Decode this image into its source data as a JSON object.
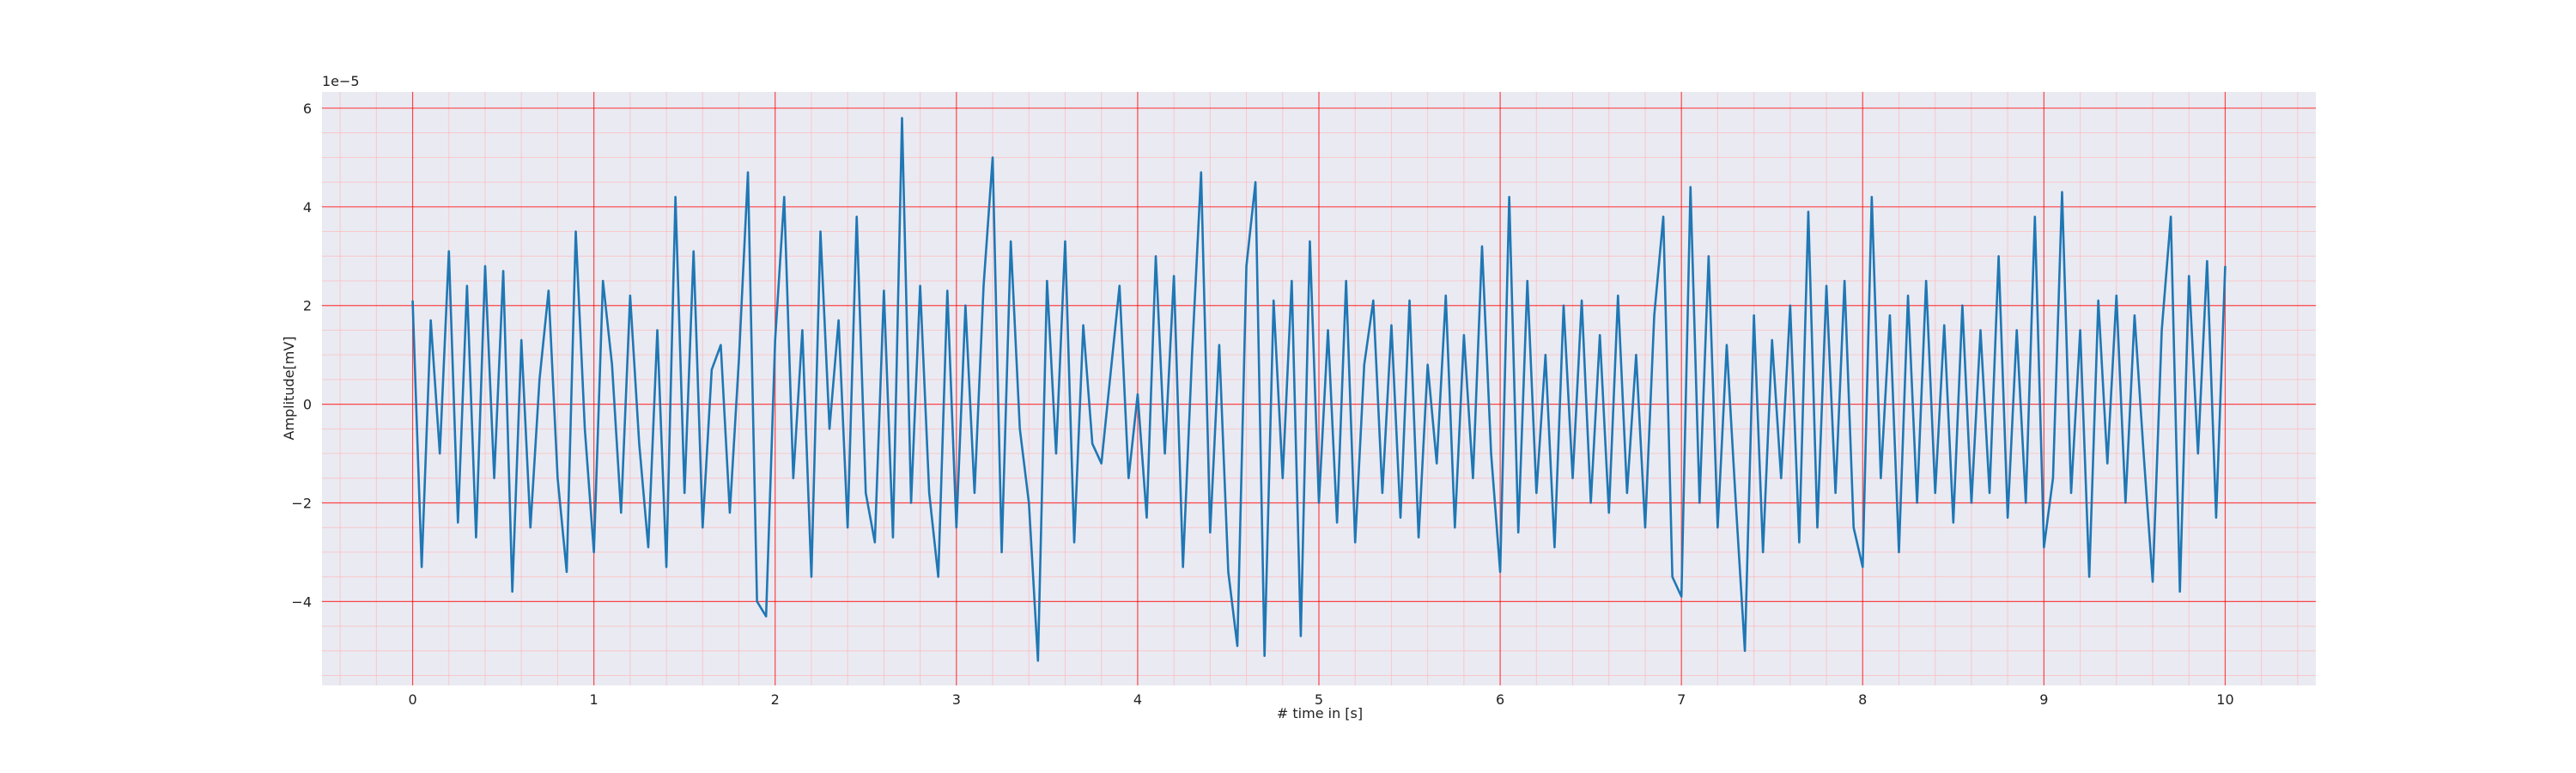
{
  "chart_data": {
    "type": "line",
    "xlabel": "# time in [s]",
    "ylabel": "Amplitude[mV]",
    "y_offset_label": "1e−5",
    "color": "#1f77b4",
    "background": "#eaeaf2",
    "grid_color": "#ff0000",
    "minor_grid_color": "#ffb3b3",
    "grid": true,
    "minor_grid": true,
    "xlim": [
      -0.5,
      10.5
    ],
    "ylim": [
      -5.7,
      6.33
    ],
    "xticks": [
      0,
      1,
      2,
      3,
      4,
      5,
      6,
      7,
      8,
      9,
      10
    ],
    "yticks": [
      {
        "value": -4,
        "label": "−4"
      },
      {
        "value": -2,
        "label": "−2"
      },
      0,
      2,
      4,
      6
    ],
    "xminorticks": [
      -0.4,
      -0.2,
      0.2,
      0.4,
      0.6,
      0.8,
      1.2,
      1.4,
      1.6,
      1.8,
      2.2,
      2.4,
      2.6,
      2.8,
      3.2,
      3.4,
      3.6,
      3.8,
      4.2,
      4.4,
      4.6,
      4.8,
      5.2,
      5.4,
      5.6,
      5.8,
      6.2,
      6.4,
      6.6,
      6.8,
      7.2,
      7.4,
      7.6,
      7.8,
      8.2,
      8.4,
      8.6,
      8.8,
      9.2,
      9.4,
      9.6,
      9.8,
      10.2,
      10.4
    ],
    "yminorticks": [
      -5.5,
      -5,
      -4.5,
      -3.5,
      -3,
      -2.5,
      -1.5,
      -1,
      -0.5,
      0.5,
      1,
      1.5,
      2.5,
      3,
      3.5,
      4.5,
      5,
      5.5
    ],
    "x": [
      0,
      0.05,
      0.1,
      0.15,
      0.2,
      0.25,
      0.3,
      0.35,
      0.4,
      0.45,
      0.5,
      0.55,
      0.6,
      0.65,
      0.7,
      0.75,
      0.8,
      0.85,
      0.9,
      0.95,
      1,
      1.05,
      1.1,
      1.15,
      1.2,
      1.25,
      1.3,
      1.35,
      1.4,
      1.45,
      1.5,
      1.55,
      1.6,
      1.65,
      1.7,
      1.75,
      1.8,
      1.85,
      1.9,
      1.95,
      2,
      2.05,
      2.1,
      2.15,
      2.2,
      2.25,
      2.3,
      2.35,
      2.4,
      2.45,
      2.5,
      2.55,
      2.6,
      2.65,
      2.7,
      2.75,
      2.8,
      2.85,
      2.9,
      2.95,
      3,
      3.05,
      3.1,
      3.15,
      3.2,
      3.25,
      3.3,
      3.35,
      3.4,
      3.45,
      3.5,
      3.55,
      3.6,
      3.65,
      3.7,
      3.75,
      3.8,
      3.85,
      3.9,
      3.95,
      4,
      4.05,
      4.1,
      4.15,
      4.2,
      4.25,
      4.3,
      4.35,
      4.4,
      4.45,
      4.5,
      4.55,
      4.6,
      4.65,
      4.7,
      4.75,
      4.8,
      4.85,
      4.9,
      4.95,
      5,
      5.05,
      5.1,
      5.15,
      5.2,
      5.25,
      5.3,
      5.35,
      5.4,
      5.45,
      5.5,
      5.55,
      5.6,
      5.65,
      5.7,
      5.75,
      5.8,
      5.85,
      5.9,
      5.95,
      6,
      6.05,
      6.1,
      6.15,
      6.2,
      6.25,
      6.3,
      6.35,
      6.4,
      6.45,
      6.5,
      6.55,
      6.6,
      6.65,
      6.7,
      6.75,
      6.8,
      6.85,
      6.9,
      6.95,
      7,
      7.05,
      7.1,
      7.15,
      7.2,
      7.25,
      7.3,
      7.35,
      7.4,
      7.45,
      7.5,
      7.55,
      7.6,
      7.65,
      7.7,
      7.75,
      7.8,
      7.85,
      7.9,
      7.95,
      8,
      8.05,
      8.1,
      8.15,
      8.2,
      8.25,
      8.3,
      8.35,
      8.4,
      8.45,
      8.5,
      8.55,
      8.6,
      8.65,
      8.7,
      8.75,
      8.8,
      8.85,
      8.9,
      8.95,
      9,
      9.05,
      9.1,
      9.15,
      9.2,
      9.25,
      9.3,
      9.35,
      9.4,
      9.45,
      9.5,
      9.55,
      9.6,
      9.65,
      9.7,
      9.75,
      9.8,
      9.85,
      9.9,
      9.95,
      10
    ],
    "values": [
      2.1,
      -3.3,
      1.7,
      -1.0,
      3.1,
      -2.4,
      2.4,
      -2.7,
      2.8,
      -1.5,
      2.7,
      -3.8,
      1.3,
      -2.5,
      0.5,
      2.3,
      -1.5,
      -3.4,
      3.5,
      -0.5,
      -3.0,
      2.5,
      0.8,
      -2.2,
      2.2,
      -0.8,
      -2.9,
      1.5,
      -3.3,
      4.2,
      -1.8,
      3.1,
      -2.5,
      0.7,
      1.2,
      -2.2,
      0.9,
      4.7,
      -4.0,
      -4.3,
      1.3,
      4.2,
      -1.5,
      1.5,
      -3.5,
      3.5,
      -0.5,
      1.7,
      -2.5,
      3.8,
      -1.8,
      -2.8,
      2.3,
      -2.7,
      5.8,
      -2.0,
      2.4,
      -1.8,
      -3.5,
      2.3,
      -2.5,
      2.0,
      -1.8,
      2.4,
      5.0,
      -3.0,
      3.3,
      -0.5,
      -2.0,
      -5.2,
      2.5,
      -1.0,
      3.3,
      -2.8,
      1.6,
      -0.8,
      -1.2,
      0.6,
      2.4,
      -1.5,
      0.2,
      -2.3,
      3.0,
      -1.0,
      2.6,
      -3.3,
      1.0,
      4.7,
      -2.6,
      1.2,
      -3.4,
      -4.9,
      2.8,
      4.5,
      -5.1,
      2.1,
      -1.5,
      2.5,
      -4.7,
      3.3,
      -2.0,
      1.5,
      -2.4,
      2.5,
      -2.8,
      0.8,
      2.1,
      -1.8,
      1.6,
      -2.3,
      2.1,
      -2.7,
      0.8,
      -1.2,
      2.2,
      -2.5,
      1.4,
      -1.5,
      3.2,
      -1.0,
      -3.4,
      4.2,
      -2.6,
      2.5,
      -1.8,
      1.0,
      -2.9,
      2.0,
      -1.5,
      2.1,
      -2.0,
      1.4,
      -2.2,
      2.2,
      -1.8,
      1.0,
      -2.5,
      1.8,
      3.8,
      -3.5,
      -3.9,
      4.4,
      -2.0,
      3.0,
      -2.5,
      1.2,
      -2.0,
      -5.0,
      1.8,
      -3.0,
      1.3,
      -1.5,
      2.0,
      -2.8,
      3.9,
      -2.5,
      2.4,
      -1.8,
      2.5,
      -2.5,
      -3.3,
      4.2,
      -1.5,
      1.8,
      -3.0,
      2.2,
      -2.0,
      2.5,
      -1.8,
      1.6,
      -2.4,
      2.0,
      -2.0,
      1.5,
      -1.8,
      3.0,
      -2.3,
      1.5,
      -2.0,
      3.8,
      -2.9,
      -1.5,
      4.3,
      -1.8,
      1.5,
      -3.5,
      2.1,
      -1.2,
      2.2,
      -2.0,
      1.8,
      -1.0,
      -3.6,
      1.5,
      3.8,
      -3.8,
      2.6,
      -1.0,
      2.9,
      -2.3,
      2.8
    ]
  }
}
